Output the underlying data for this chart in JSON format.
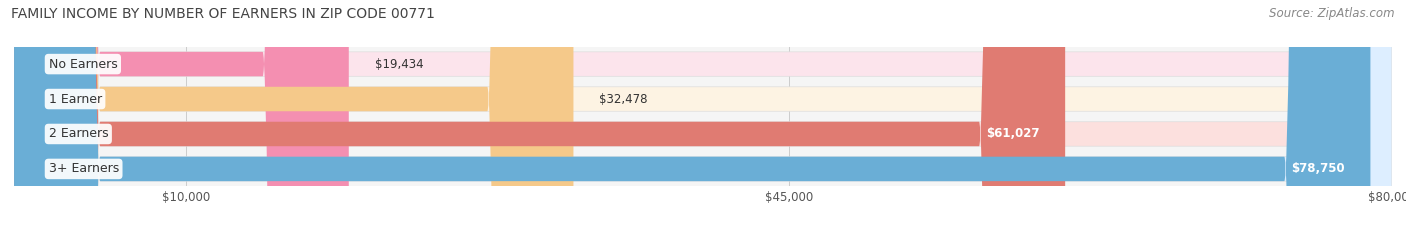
{
  "title": "FAMILY INCOME BY NUMBER OF EARNERS IN ZIP CODE 00771",
  "source": "Source: ZipAtlas.com",
  "categories": [
    "No Earners",
    "1 Earner",
    "2 Earners",
    "3+ Earners"
  ],
  "values": [
    19434,
    32478,
    61027,
    78750
  ],
  "bar_colors": [
    "#f48fb1",
    "#f5c98a",
    "#e07b72",
    "#6aaed6"
  ],
  "bar_bg_colors": [
    "#fce4ec",
    "#fdf3e3",
    "#fce0de",
    "#ddeeff"
  ],
  "value_label_colors": [
    "#333333",
    "#333333",
    "#ffffff",
    "#ffffff"
  ],
  "xmin": 0,
  "xmax": 80000,
  "xticks": [
    10000,
    45000,
    80000
  ],
  "xtick_labels": [
    "$10,000",
    "$45,000",
    "$80,000"
  ],
  "background_color": "#ffffff",
  "plot_bg_color": "#f5f5f5",
  "title_fontsize": 10,
  "source_fontsize": 8.5,
  "label_fontsize": 9,
  "value_fontsize": 8.5
}
